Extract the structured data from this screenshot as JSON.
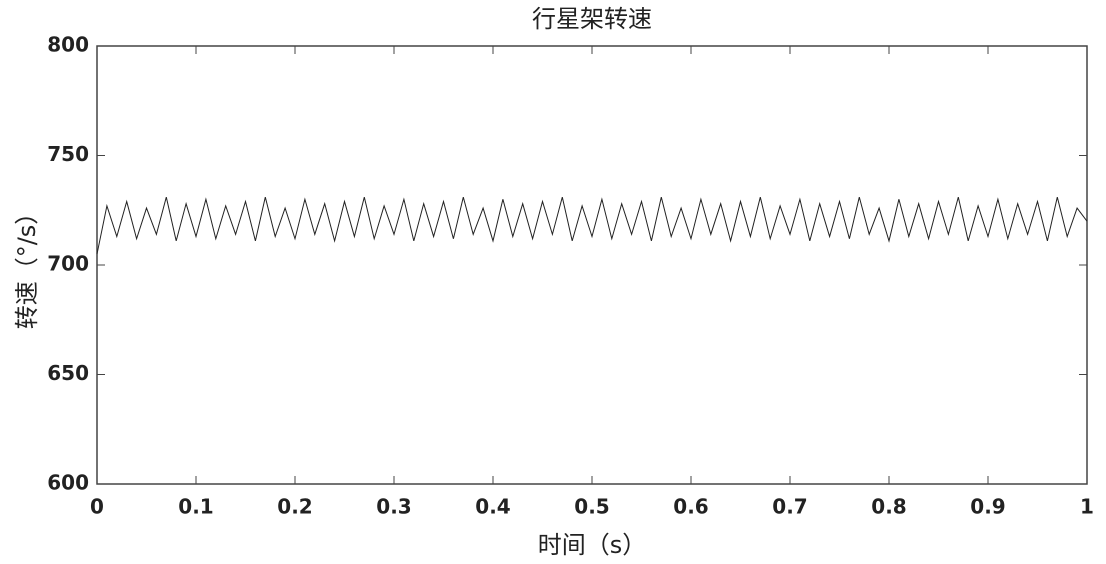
{
  "chart_data": {
    "type": "line",
    "title": "行星架转速",
    "x_label": "时间（s）",
    "y_label": "转速（°/s）",
    "x": [
      0,
      0.01,
      0.02,
      0.03,
      0.04,
      0.05,
      0.06,
      0.07,
      0.08,
      0.09,
      0.1,
      0.11,
      0.12,
      0.13,
      0.14,
      0.15,
      0.16,
      0.17,
      0.18,
      0.19,
      0.2,
      0.21,
      0.22,
      0.23,
      0.24,
      0.25,
      0.26,
      0.27,
      0.28,
      0.29,
      0.3,
      0.31,
      0.32,
      0.33,
      0.34,
      0.35,
      0.36,
      0.37,
      0.38,
      0.39,
      0.4,
      0.41,
      0.42,
      0.43,
      0.44,
      0.45,
      0.46,
      0.47,
      0.48,
      0.49,
      0.5,
      0.51,
      0.52,
      0.53,
      0.54,
      0.55,
      0.56,
      0.57,
      0.58,
      0.59,
      0.6,
      0.61,
      0.62,
      0.63,
      0.64,
      0.65,
      0.66,
      0.67,
      0.68,
      0.69,
      0.7,
      0.71,
      0.72,
      0.73,
      0.74,
      0.75,
      0.76,
      0.77,
      0.78,
      0.79,
      0.8,
      0.81,
      0.82,
      0.83,
      0.84,
      0.85,
      0.86,
      0.87,
      0.88,
      0.89,
      0.9,
      0.91,
      0.92,
      0.93,
      0.94,
      0.95,
      0.96,
      0.97,
      0.98,
      0.99,
      1
    ],
    "values": [
      705,
      727,
      713,
      729,
      712,
      726,
      714,
      731,
      711,
      728,
      713,
      730,
      712,
      727,
      714,
      729,
      711,
      731,
      713,
      726,
      712,
      730,
      714,
      728,
      711,
      729,
      713,
      731,
      712,
      727,
      714,
      730,
      711,
      728,
      713,
      729,
      712,
      731,
      714,
      726,
      711,
      730,
      713,
      728,
      712,
      729,
      714,
      731,
      711,
      727,
      713,
      730,
      712,
      728,
      714,
      729,
      711,
      731,
      713,
      726,
      712,
      730,
      714,
      728,
      711,
      729,
      713,
      731,
      712,
      727,
      714,
      730,
      711,
      728,
      713,
      729,
      712,
      731,
      714,
      726,
      711,
      730,
      713,
      728,
      712,
      729,
      714,
      731,
      711,
      727,
      713,
      730,
      712,
      728,
      714,
      729,
      711,
      731,
      713,
      726,
      720
    ],
    "color": "#222222",
    "xlim": [
      0,
      1
    ],
    "xticks": [
      0,
      0.1,
      0.2,
      0.3,
      0.4,
      0.5,
      0.6,
      0.7,
      0.8,
      0.9,
      1
    ],
    "ylim": [
      600,
      800
    ],
    "yticks": [
      600,
      650,
      700,
      750,
      800
    ],
    "grid": false
  }
}
